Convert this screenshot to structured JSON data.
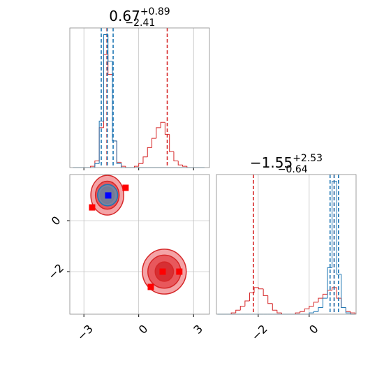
{
  "chart_data": [
    {
      "type": "histogram",
      "title": {
        "value": "0.67",
        "plus": "+0.89",
        "minus": "−2.41"
      },
      "xlim": [
        -3.77,
        3.87
      ],
      "ylim": [
        0,
        1.05
      ],
      "xticks": [
        -3,
        0,
        3
      ],
      "grid": true,
      "bins": [
        -3.6,
        -3.36,
        -3.12,
        -2.88,
        -2.64,
        -2.4,
        -2.16,
        -1.92,
        -1.68,
        -1.44,
        -1.2,
        -0.96,
        -0.72,
        -0.48,
        -0.24,
        0,
        0.24,
        0.48,
        0.72,
        0.96,
        1.2,
        1.44,
        1.68,
        1.92,
        2.16,
        2.4,
        2.64,
        2.88,
        3.12,
        3.36,
        3.6
      ],
      "series": [
        {
          "color": "#d62728",
          "values": [
            0,
            0,
            0,
            0,
            0.01,
            0.05,
            0.3,
            0.85,
            0.7,
            0.2,
            0.04,
            0.01,
            0,
            0,
            0.01,
            0.03,
            0.08,
            0.15,
            0.22,
            0.3,
            0.34,
            0.25,
            0.12,
            0.05,
            0.02,
            0.01,
            0,
            0,
            0,
            0
          ],
          "quantiles": [
            -1.74,
            1.56
          ]
        },
        {
          "color": "#1f77b4",
          "values": [
            0,
            0,
            0,
            0,
            0,
            0.03,
            0.35,
            1.0,
            0.8,
            0.2,
            0.03,
            0,
            0,
            0,
            0,
            0,
            0,
            0,
            0,
            0,
            0,
            0,
            0,
            0,
            0,
            0,
            0,
            0,
            0,
            0
          ],
          "quantiles": [
            -2.05,
            -1.72,
            -1.4
          ]
        }
      ]
    },
    {
      "type": "scatter",
      "xlim": [
        -3.77,
        3.87
      ],
      "ylim": [
        -3.67,
        1.81
      ],
      "xticks": [
        {
          "value": -3,
          "label": "−3"
        },
        0,
        3
      ],
      "yticks": [
        0,
        {
          "value": -2,
          "label": "−2"
        }
      ],
      "grid": true,
      "contours": [
        {
          "color": "#d62728",
          "x": -1.72,
          "y": 1.0,
          "rx": [
            0.9,
            0.65,
            0.38
          ],
          "ry": [
            0.78,
            0.55,
            0.32
          ]
        },
        {
          "color": "#d62728",
          "x": 1.4,
          "y": -2.0,
          "rx": [
            1.2,
            0.9,
            0.5
          ],
          "ry": [
            0.88,
            0.65,
            0.38
          ]
        },
        {
          "color": "#1f77b4",
          "x": -1.7,
          "y": 1.0,
          "rx": [
            0.55
          ],
          "ry": [
            0.42
          ]
        }
      ],
      "series": [
        {
          "color": "#ff0000",
          "x": [
            -2.55,
            -0.72,
            1.31,
            2.22,
            0.66
          ],
          "y": [
            0.52,
            1.29,
            -2.0,
            -2.0,
            -2.6
          ]
        },
        {
          "color": "#0000ff",
          "x": [
            -1.67
          ],
          "y": [
            0.99
          ]
        }
      ]
    },
    {
      "type": "histogram",
      "title": {
        "value": "−1.55",
        "plus": "+2.53",
        "minus": "−0.64"
      },
      "xlim": [
        -3.64,
        1.84
      ],
      "ylim": [
        0,
        1.05
      ],
      "xticks": [
        {
          "value": -2,
          "label": "−2"
        },
        0
      ],
      "grid": true,
      "bins": [
        -3.6,
        -3.42,
        -3.24,
        -3.06,
        -2.88,
        -2.7,
        -2.52,
        -2.34,
        -2.16,
        -1.98,
        -1.8,
        -1.62,
        -1.44,
        -1.26,
        -1.08,
        -0.9,
        -0.72,
        -0.54,
        -0.36,
        -0.18,
        0,
        0.18,
        0.36,
        0.54,
        0.72,
        0.9,
        1.08,
        1.26,
        1.44,
        1.62,
        1.8
      ],
      "series": [
        {
          "color": "#d62728",
          "values": [
            0,
            0,
            0,
            0.01,
            0.03,
            0.06,
            0.1,
            0.16,
            0.2,
            0.19,
            0.14,
            0.08,
            0.03,
            0.01,
            0,
            0,
            0,
            0.01,
            0.02,
            0.04,
            0.06,
            0.09,
            0.12,
            0.15,
            0.18,
            0.2,
            0.12,
            0.05,
            0.02,
            0.01
          ],
          "quantiles": [
            -2.19,
            0.98
          ]
        },
        {
          "color": "#1f77b4",
          "values": [
            0,
            0,
            0,
            0,
            0,
            0,
            0,
            0,
            0,
            0,
            0,
            0,
            0,
            0,
            0,
            0,
            0,
            0,
            0,
            0,
            0.01,
            0.02,
            0.05,
            0.12,
            0.35,
            1.0,
            0.3,
            0.05,
            0.01,
            0
          ],
          "quantiles": [
            0.82,
            0.98,
            1.15
          ]
        }
      ]
    }
  ]
}
